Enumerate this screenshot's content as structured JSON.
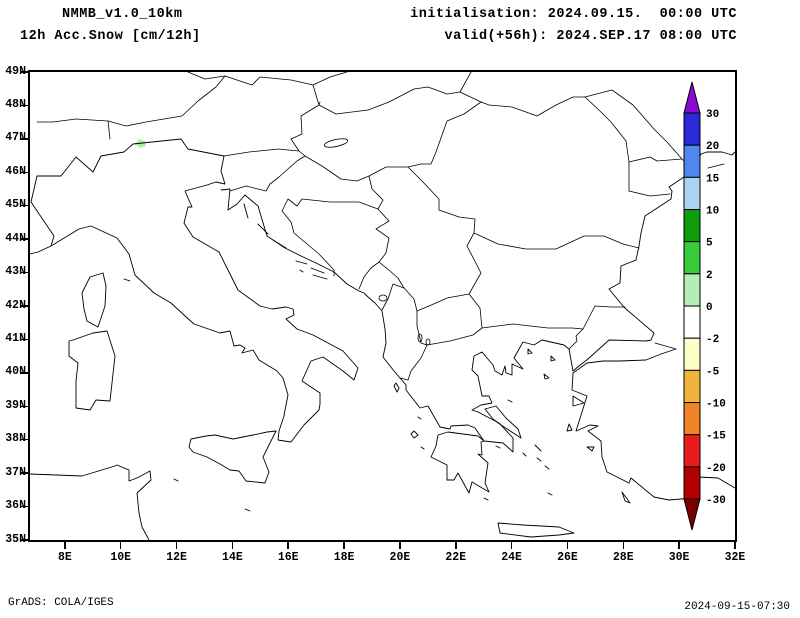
{
  "header": {
    "model": "NMMB_v1.0_10km",
    "product": "12h Acc.Snow [cm/12h]",
    "init": "initialisation: 2024.09.15.  00:00 UTC",
    "valid": "valid(+56h): 2024.SEP.17 08:00 UTC"
  },
  "footer": {
    "left": "GrADS: COLA/IGES",
    "right": "2024-09-15-07:30"
  },
  "map": {
    "lat_labels": [
      "49N",
      "48N",
      "47N",
      "46N",
      "45N",
      "44N",
      "43N",
      "42N",
      "41N",
      "40N",
      "39N",
      "38N",
      "37N",
      "36N",
      "35N"
    ],
    "lon_labels": [
      "8E",
      "10E",
      "12E",
      "14E",
      "16E",
      "18E",
      "20E",
      "22E",
      "24E",
      "26E",
      "28E",
      "30E",
      "32E"
    ],
    "lat_range": [
      "35N",
      "49N"
    ],
    "lon_range": [
      "8E",
      "32E"
    ],
    "snow_patch_color": "#b4eea6"
  },
  "colorbar": {
    "labels": [
      "30",
      "20",
      "15",
      "10",
      "5",
      "2",
      "0",
      "-2",
      "-5",
      "-10",
      "-15",
      "-20",
      "-30"
    ],
    "levels": [
      30,
      20,
      15,
      10,
      5,
      2,
      0,
      -2,
      -5,
      -10,
      -15,
      -20,
      -30
    ],
    "arrow_top_color": "#8a0bd0",
    "segment_colors": [
      "#2a2ad8",
      "#4f86f0",
      "#aad2f2",
      "#0c9c0c",
      "#38cc38",
      "#b4eeb4",
      "#ffffff",
      "#ffffc8",
      "#f0b43c",
      "#f08228",
      "#e81c1c",
      "#b40000"
    ],
    "arrow_bottom_color": "#7a0000"
  }
}
